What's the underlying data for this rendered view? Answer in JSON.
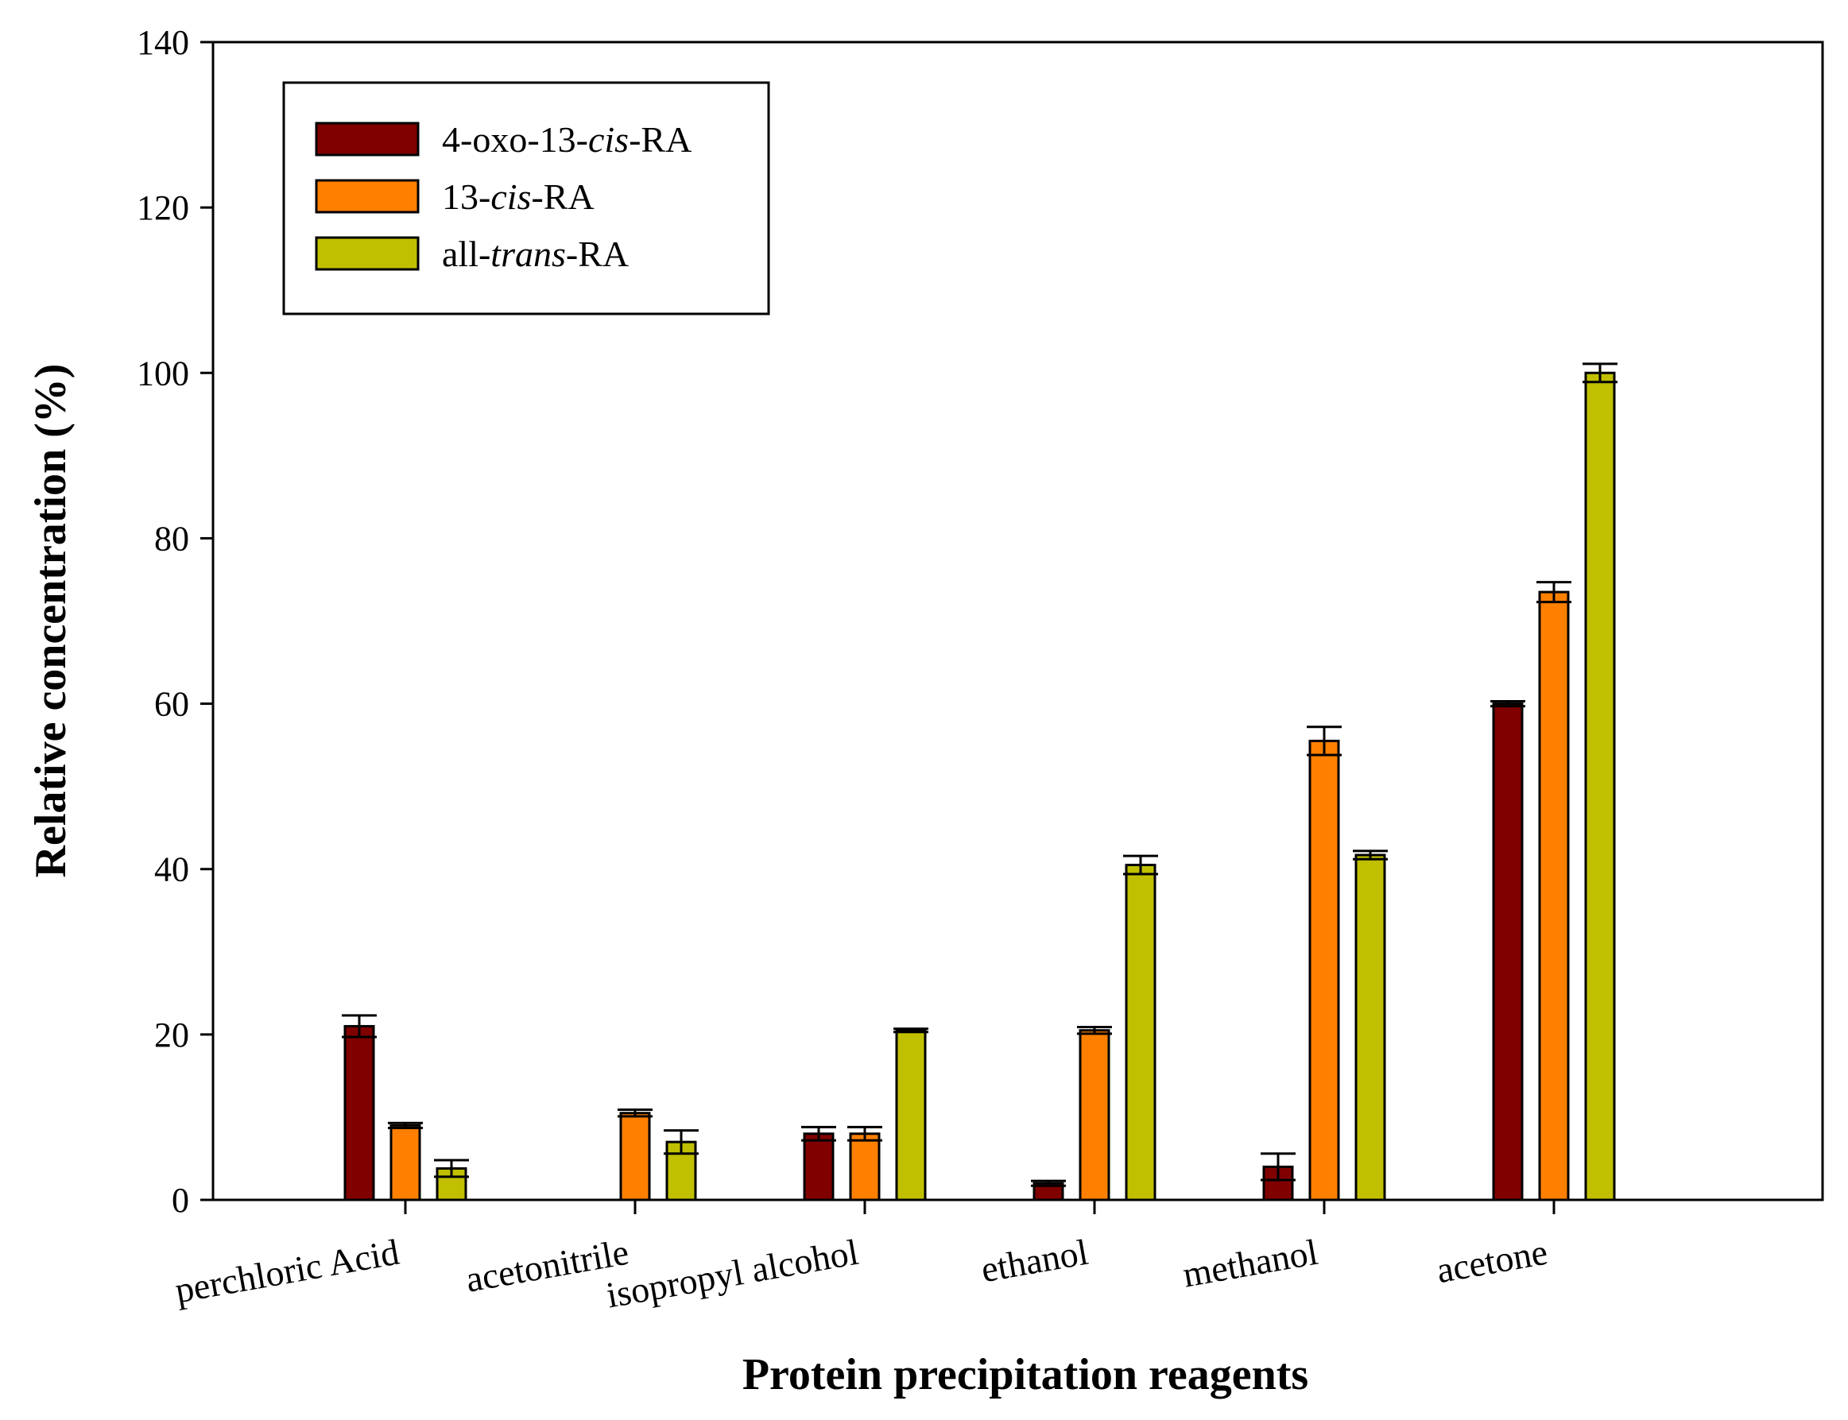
{
  "chart_data": {
    "type": "bar",
    "xlabel": "Protein precipitation reagents",
    "ylabel": "Relative concentration (%)",
    "ylim": [
      0,
      140
    ],
    "yticks": [
      0,
      20,
      40,
      60,
      80,
      100,
      120,
      140
    ],
    "categories": [
      "perchloric Acid",
      "acetonitrile",
      "isopropyl alcohol",
      "ethanol",
      "methanol",
      "acetone"
    ],
    "series": [
      {
        "name": "4-oxo-13-cis-RA",
        "legend_parts": [
          {
            "text": "4-oxo-13-",
            "italic": false
          },
          {
            "text": "cis",
            "italic": true
          },
          {
            "text": "-RA",
            "italic": false
          }
        ],
        "color": "#800000",
        "values": [
          21,
          null,
          8,
          2,
          4,
          60
        ],
        "errors": [
          1.3,
          null,
          0.8,
          0.3,
          1.6,
          0.3
        ]
      },
      {
        "name": "13-cis-RA",
        "legend_parts": [
          {
            "text": "13-",
            "italic": false
          },
          {
            "text": "cis",
            "italic": true
          },
          {
            "text": "-RA",
            "italic": false
          }
        ],
        "color": "#FF8000",
        "values": [
          9,
          10.5,
          8,
          20.5,
          55.5,
          73.5
        ],
        "errors": [
          0.3,
          0.4,
          0.8,
          0.4,
          1.7,
          1.2
        ]
      },
      {
        "name": "all-trans-RA",
        "legend_parts": [
          {
            "text": "all-",
            "italic": false
          },
          {
            "text": "trans",
            "italic": true
          },
          {
            "text": "-RA",
            "italic": false
          }
        ],
        "color": "#C0C000",
        "values": [
          3.8,
          7,
          20.5,
          40.5,
          41.7,
          100
        ],
        "errors": [
          1.0,
          1.4,
          0.2,
          1.1,
          0.5,
          1.1
        ]
      }
    ],
    "legend_position": "top-left"
  }
}
